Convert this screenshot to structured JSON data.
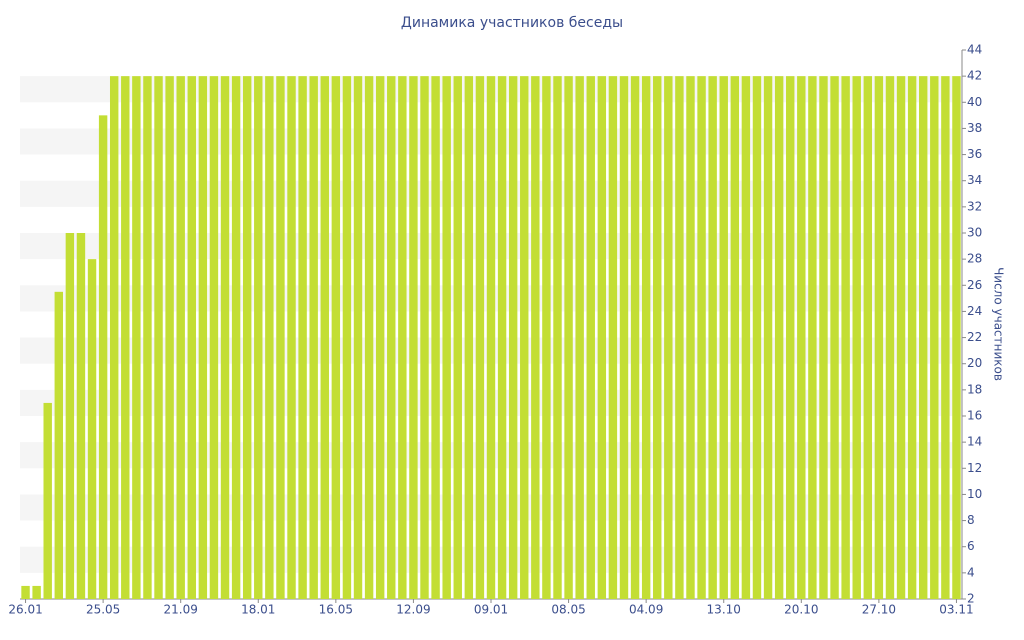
{
  "chart_data": {
    "type": "bar",
    "title": "Динамика участников беседы",
    "y_axis_label": "Число участников",
    "categories": [
      "26.01",
      null,
      null,
      null,
      null,
      null,
      null,
      "25.05",
      null,
      null,
      null,
      null,
      null,
      null,
      "21.09",
      null,
      null,
      null,
      null,
      null,
      null,
      "18.01",
      null,
      null,
      null,
      null,
      null,
      null,
      "16.05",
      null,
      null,
      null,
      null,
      null,
      null,
      "12.09",
      null,
      null,
      null,
      null,
      null,
      null,
      "09.01",
      null,
      null,
      null,
      null,
      null,
      null,
      "08.05",
      null,
      null,
      null,
      null,
      null,
      null,
      "04.09",
      null,
      null,
      null,
      null,
      null,
      null,
      "13.10",
      null,
      null,
      null,
      null,
      null,
      null,
      "20.10",
      null,
      null,
      null,
      null,
      null,
      null,
      "27.10",
      null,
      null,
      null,
      null,
      null,
      null,
      "03.11"
    ],
    "values": [
      3,
      3,
      17,
      25.5,
      30,
      30,
      28,
      39,
      42,
      42,
      42,
      42,
      42,
      42,
      42,
      42,
      42,
      42,
      42,
      42,
      42,
      42,
      42,
      42,
      42,
      42,
      42,
      42,
      42,
      42,
      42,
      42,
      42,
      42,
      42,
      42,
      42,
      42,
      42,
      42,
      42,
      42,
      42,
      42,
      42,
      42,
      42,
      42,
      42,
      42,
      42,
      42,
      42,
      42,
      42,
      42,
      42,
      42,
      42,
      42,
      42,
      42,
      42,
      42,
      42,
      42,
      42,
      42,
      42,
      42,
      42,
      42,
      42,
      42,
      42,
      42,
      42,
      42,
      42,
      42,
      42,
      42,
      42,
      42,
      42
    ],
    "color": "#c3de34",
    "ylim": [
      2,
      44
    ],
    "yticks": [
      2,
      4,
      6,
      8,
      10,
      12,
      14,
      16,
      18,
      20,
      22,
      24,
      26,
      28,
      30,
      32,
      34,
      36,
      38,
      40,
      42,
      44
    ],
    "y_axis_side": "right"
  }
}
